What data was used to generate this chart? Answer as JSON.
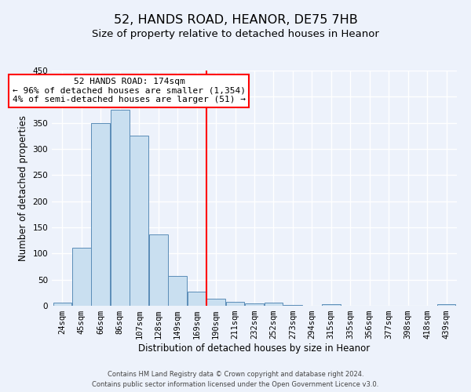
{
  "title": "52, HANDS ROAD, HEANOR, DE75 7HB",
  "subtitle": "Size of property relative to detached houses in Heanor",
  "xlabel": "Distribution of detached houses by size in Heanor",
  "ylabel": "Number of detached properties",
  "bar_labels": [
    "24sqm",
    "45sqm",
    "66sqm",
    "86sqm",
    "107sqm",
    "128sqm",
    "149sqm",
    "169sqm",
    "190sqm",
    "211sqm",
    "232sqm",
    "252sqm",
    "273sqm",
    "294sqm",
    "315sqm",
    "335sqm",
    "356sqm",
    "377sqm",
    "398sqm",
    "418sqm",
    "439sqm"
  ],
  "bar_values": [
    6,
    111,
    350,
    375,
    325,
    136,
    57,
    27,
    14,
    8,
    4,
    6,
    2,
    0,
    3,
    0,
    0,
    0,
    0,
    0,
    3
  ],
  "bar_color": "#c9dff0",
  "bar_edge_color": "#5b8db8",
  "ylim": [
    0,
    450
  ],
  "annotation_title": "52 HANDS ROAD: 174sqm",
  "annotation_line1": "← 96% of detached houses are smaller (1,354)",
  "annotation_line2": "4% of semi-detached houses are larger (51) →",
  "vline_position": 7.5,
  "footer_line1": "Contains HM Land Registry data © Crown copyright and database right 2024.",
  "footer_line2": "Contains public sector information licensed under the Open Government Licence v3.0.",
  "background_color": "#edf2fb",
  "grid_color": "#ffffff",
  "title_fontsize": 11.5,
  "subtitle_fontsize": 9.5,
  "axis_label_fontsize": 8.5,
  "tick_fontsize": 7.5,
  "footer_fontsize": 6.0
}
